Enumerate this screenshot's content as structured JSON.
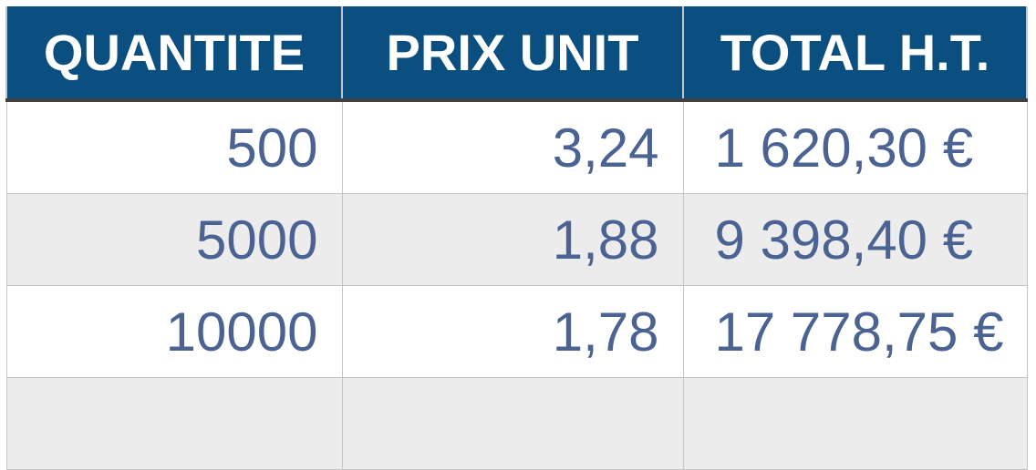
{
  "table": {
    "headers": [
      "QUANTITE",
      "PRIX UNIT",
      "TOTAL H.T."
    ],
    "rows": [
      [
        "500",
        "3,24",
        "1 620,30 €"
      ],
      [
        "5000",
        "1,88",
        "9 398,40 €"
      ],
      [
        "10000",
        "1,78",
        "17 778,75 €"
      ]
    ]
  },
  "colors": {
    "header_bg": "#0a4f7f",
    "header_text": "#ffffff",
    "cell_text": "#4a6393",
    "alt_row_bg": "#ececec"
  }
}
